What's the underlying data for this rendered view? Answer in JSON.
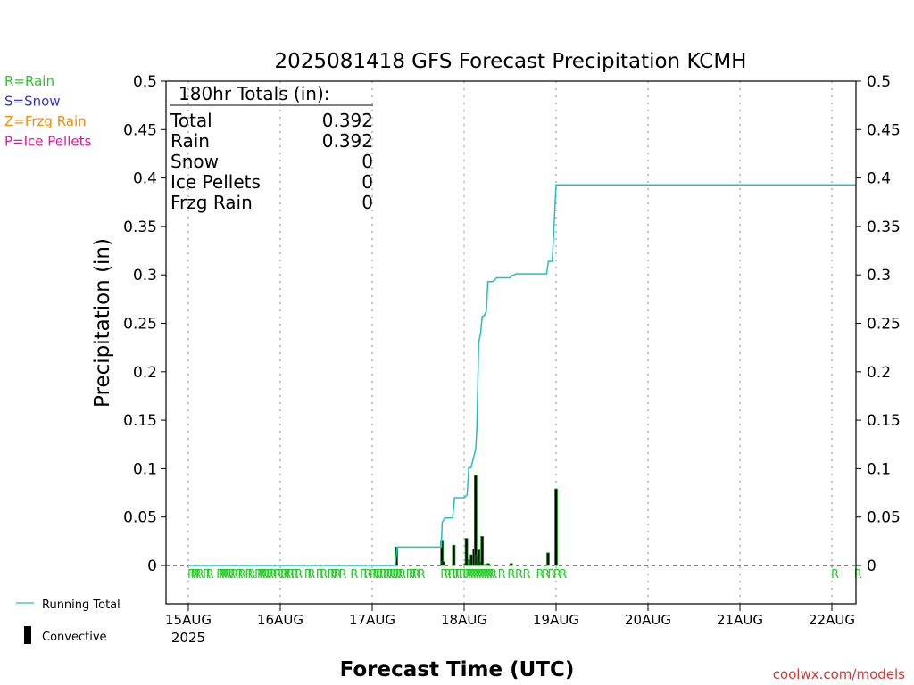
{
  "chart_data": {
    "type": "bar",
    "title": "2025081418 GFS Forecast Precipitation KCMH",
    "xlabel": "Forecast Time (UTC)",
    "ylabel": "Precipitation (in)",
    "ylim": [
      0,
      0.5
    ],
    "y_ticks": [
      "0",
      "0.05",
      "0.1",
      "0.15",
      "0.2",
      "0.25",
      "0.3",
      "0.35",
      "0.4",
      "0.45",
      "0.5"
    ],
    "x_ticks": [
      "15AUG",
      "16AUG",
      "17AUG",
      "18AUG",
      "19AUG",
      "20AUG",
      "21AUG",
      "22AUG"
    ],
    "x_year": "2025",
    "grid": "vertical dotted",
    "legend_left": [
      {
        "label": "R=Rain",
        "color": "#22cc22"
      },
      {
        "label": "S=Snow",
        "color": "#3333dd"
      },
      {
        "label": "Z=Frzg Rain",
        "color": "#ff8800"
      },
      {
        "label": "P=Ice Pellets",
        "color": "#ee1199"
      }
    ],
    "legend_bottom": [
      {
        "label": "Running Total",
        "color": "#20c0c0"
      },
      {
        "label": "Convective",
        "color": "#000000"
      }
    ],
    "totals": {
      "header": "180hr Totals (in):",
      "rows": [
        {
          "label": "Total",
          "value": "0.392"
        },
        {
          "label": "Rain",
          "value": "0.392"
        },
        {
          "label": "Snow",
          "value": "0"
        },
        {
          "label": "Ice Pellets",
          "value": "0"
        },
        {
          "label": "Frzg Rain",
          "value": "0"
        }
      ]
    },
    "series": [
      {
        "name": "Running Total",
        "type": "line",
        "points": [
          [
            0,
            0
          ],
          [
            54,
            0
          ],
          [
            54.5,
            0.019
          ],
          [
            66,
            0.019
          ],
          [
            66.3,
            0.045
          ],
          [
            67,
            0.049
          ],
          [
            69,
            0.049
          ],
          [
            69.5,
            0.07
          ],
          [
            72,
            0.07
          ],
          [
            72.8,
            0.073
          ],
          [
            73.2,
            0.101
          ],
          [
            73.8,
            0.101
          ],
          [
            74.5,
            0.112
          ],
          [
            75,
            0.12
          ],
          [
            75.3,
            0.14
          ],
          [
            75.8,
            0.23
          ],
          [
            76.3,
            0.24
          ],
          [
            76.7,
            0.257
          ],
          [
            77.3,
            0.258
          ],
          [
            77.8,
            0.263
          ],
          [
            78.2,
            0.293
          ],
          [
            79.5,
            0.293
          ],
          [
            80.5,
            0.297
          ],
          [
            84,
            0.297
          ],
          [
            84.3,
            0.299
          ],
          [
            85,
            0.3
          ],
          [
            85.5,
            0.301
          ],
          [
            93.5,
            0.301
          ],
          [
            94,
            0.314
          ],
          [
            95,
            0.314
          ],
          [
            96,
            0.393
          ],
          [
            180,
            0.393
          ]
        ]
      },
      {
        "name": "Precipitation",
        "type": "bar",
        "points": [
          [
            54.3,
            0.019
          ],
          [
            66.2,
            0.026
          ],
          [
            66.5,
            0.004
          ],
          [
            69.3,
            0.021
          ],
          [
            72.3,
            0.002
          ],
          [
            72.6,
            0.028
          ],
          [
            73.5,
            0.006
          ],
          [
            73.9,
            0.011
          ],
          [
            74.6,
            0.017
          ],
          [
            75,
            0.093
          ],
          [
            75.4,
            0.011
          ],
          [
            75.8,
            0.016
          ],
          [
            76.3,
            0.004
          ],
          [
            76.7,
            0.03
          ],
          [
            77.4,
            0.001
          ],
          [
            78.3,
            0.002
          ],
          [
            84.3,
            0.002
          ],
          [
            93.9,
            0.013
          ],
          [
            96,
            0.079
          ]
        ]
      }
    ],
    "ptype_markers": [
      {
        "x": 0,
        "label": "R"
      },
      {
        "x": 0.8,
        "label": "R"
      },
      {
        "x": 1.5,
        "label": "R"
      },
      {
        "x": 2.2,
        "label": "R"
      },
      {
        "x": 4,
        "label": "R"
      },
      {
        "x": 4.8,
        "label": "R"
      },
      {
        "x": 7.5,
        "label": "R"
      },
      {
        "x": 8.2,
        "label": "R"
      },
      {
        "x": 8.9,
        "label": "R"
      },
      {
        "x": 9.6,
        "label": "R"
      },
      {
        "x": 10.5,
        "label": "R"
      },
      {
        "x": 11.2,
        "label": "R"
      },
      {
        "x": 12.5,
        "label": "R"
      },
      {
        "x": 13.2,
        "label": "R"
      },
      {
        "x": 15,
        "label": "R"
      },
      {
        "x": 15.7,
        "label": "R"
      },
      {
        "x": 17.5,
        "label": "R"
      },
      {
        "x": 18.2,
        "label": "R"
      },
      {
        "x": 18.9,
        "label": "R"
      },
      {
        "x": 19.6,
        "label": "R"
      },
      {
        "x": 20.5,
        "label": "R"
      },
      {
        "x": 21.2,
        "label": "R"
      },
      {
        "x": 22.5,
        "label": "R"
      },
      {
        "x": 23.2,
        "label": "R"
      },
      {
        "x": 24.2,
        "label": "R"
      },
      {
        "x": 25,
        "label": "R"
      },
      {
        "x": 25.8,
        "label": "R"
      },
      {
        "x": 27,
        "label": "R"
      },
      {
        "x": 28,
        "label": "R"
      },
      {
        "x": 30.5,
        "label": "R"
      },
      {
        "x": 31.3,
        "label": "R"
      },
      {
        "x": 33.5,
        "label": "R"
      },
      {
        "x": 34.5,
        "label": "R"
      },
      {
        "x": 36.5,
        "label": "R"
      },
      {
        "x": 37.3,
        "label": "R"
      },
      {
        "x": 38.1,
        "label": "R"
      },
      {
        "x": 39.5,
        "label": "R"
      },
      {
        "x": 42.5,
        "label": "R"
      },
      {
        "x": 45,
        "label": "R"
      },
      {
        "x": 46,
        "label": "R"
      },
      {
        "x": 47.5,
        "label": "R"
      },
      {
        "x": 48.3,
        "label": "R"
      },
      {
        "x": 49.1,
        "label": "R"
      },
      {
        "x": 50,
        "label": "R"
      },
      {
        "x": 51,
        "label": "R"
      },
      {
        "x": 51.8,
        "label": "R"
      },
      {
        "x": 52.6,
        "label": "R"
      },
      {
        "x": 53.4,
        "label": "R"
      },
      {
        "x": 54.2,
        "label": "R"
      },
      {
        "x": 55,
        "label": "R"
      },
      {
        "x": 57,
        "label": "R"
      },
      {
        "x": 57.8,
        "label": "R"
      },
      {
        "x": 58.6,
        "label": "R"
      },
      {
        "x": 60,
        "label": "R"
      },
      {
        "x": 66,
        "label": "R"
      },
      {
        "x": 66.8,
        "label": "R"
      },
      {
        "x": 68,
        "label": "R"
      },
      {
        "x": 69,
        "label": "R"
      },
      {
        "x": 69.8,
        "label": "R"
      },
      {
        "x": 70.8,
        "label": "R"
      },
      {
        "x": 71.8,
        "label": "R"
      },
      {
        "x": 72.5,
        "label": "R"
      },
      {
        "x": 73.2,
        "label": "R"
      },
      {
        "x": 73.9,
        "label": "R"
      },
      {
        "x": 74.6,
        "label": "R"
      },
      {
        "x": 75.3,
        "label": "R"
      },
      {
        "x": 76,
        "label": "R"
      },
      {
        "x": 76.7,
        "label": "R"
      },
      {
        "x": 77.4,
        "label": "R"
      },
      {
        "x": 78.1,
        "label": "R"
      },
      {
        "x": 78.8,
        "label": "R"
      },
      {
        "x": 81,
        "label": "R"
      },
      {
        "x": 83.5,
        "label": "R"
      },
      {
        "x": 85.5,
        "label": "R"
      },
      {
        "x": 87.5,
        "label": "R"
      },
      {
        "x": 91,
        "label": "R"
      },
      {
        "x": 92.5,
        "label": "R"
      },
      {
        "x": 94,
        "label": "R"
      },
      {
        "x": 95.5,
        "label": "R"
      },
      {
        "x": 97,
        "label": "R"
      },
      {
        "x": 168,
        "label": "R"
      },
      {
        "x": 174,
        "label": "R"
      }
    ]
  },
  "watermark": "coolwx.com/models",
  "colors": {
    "running_total": "#20c0c0",
    "bar_fill": "#000000",
    "bar_edge": "#00aa00",
    "rain_marker": "#22cc22",
    "grid": "#b0b0b0",
    "axis": "#000000",
    "watermark": "#dd3333"
  }
}
